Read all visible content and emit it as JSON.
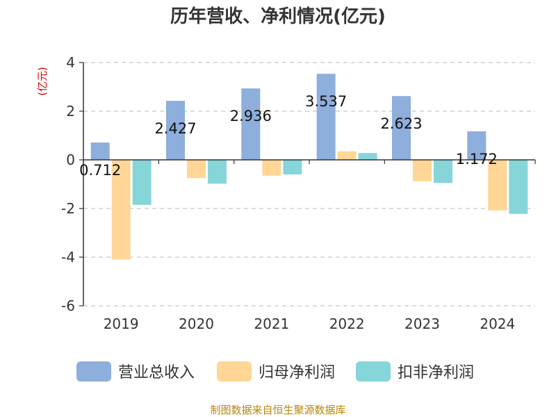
{
  "chart_data": {
    "type": "bar",
    "title": "历年营收、净利情况(亿元)",
    "unit_label": "(亿元)",
    "categories": [
      "2019",
      "2020",
      "2021",
      "2022",
      "2023",
      "2024"
    ],
    "series": [
      {
        "name": "营业总收入",
        "color": "#8eaedb",
        "values": [
          0.712,
          2.427,
          2.936,
          3.537,
          2.623,
          1.172
        ]
      },
      {
        "name": "归母净利润",
        "color": "#ffd695",
        "values": [
          -4.1,
          -0.75,
          -0.65,
          0.35,
          -0.88,
          -2.08
        ]
      },
      {
        "name": "扣非净利润",
        "color": "#86d5d8",
        "values": [
          -1.85,
          -0.98,
          -0.6,
          0.28,
          -0.95,
          -2.22
        ]
      }
    ],
    "data_labels": [
      "0.712",
      "2.427",
      "2.936",
      "3.537",
      "2.623",
      "1.172"
    ],
    "yticks": [
      "4",
      "2",
      "0",
      "-2",
      "-4",
      "-6"
    ],
    "ytick_values": [
      4,
      2,
      0,
      -2,
      -4,
      -6
    ],
    "ylim": [
      -6,
      4
    ],
    "grid": true,
    "legend_position": "bottom"
  },
  "footer": {
    "source": "制图数据来自恒生聚源数据库"
  }
}
